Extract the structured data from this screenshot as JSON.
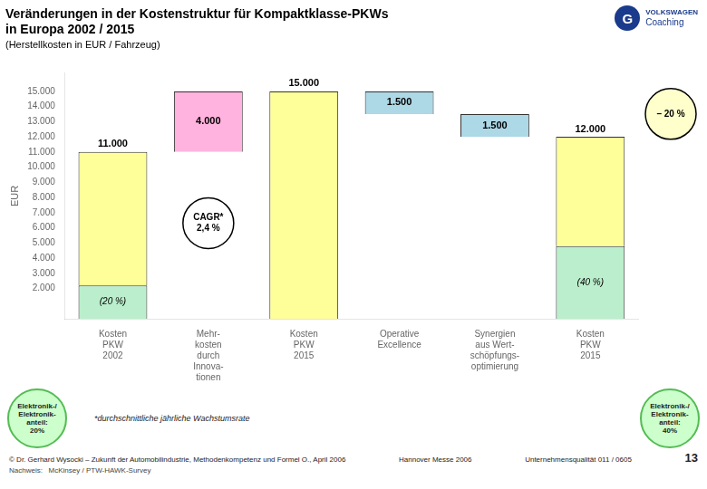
{
  "chart_data": {
    "type": "bar",
    "title": [
      "Veränderungen in der Kostenstruktur für Kompaktklasse-PKWs",
      "in Europa 2002 / 2015"
    ],
    "subtitle": "(Herstellkosten in EUR / Fahrzeug)",
    "ylabel": "EUR",
    "categories": [
      "Kosten\nPKW\n2002",
      "Mehr-\nkosten\ndurch\nInnova-\ntionen",
      "Kosten\nPKW\n2015",
      "Operative\nExcellence",
      "Synergien\naus Wert-\nschöpfungs-\noptimierung",
      "Kosten\nPKW\n2015"
    ],
    "stacked": true,
    "series": [
      {
        "color": "#BBEECC",
        "values": [
          2200,
          null,
          null,
          null,
          null,
          4800
        ],
        "segment_labels": [
          "(20 %)",
          null,
          null,
          null,
          null,
          "(40 %)"
        ]
      },
      {
        "color": "#FFFF99",
        "values": [
          8800,
          null,
          15000,
          null,
          null,
          7200
        ]
      },
      {
        "color": "#FFB3DE",
        "values": [
          null,
          4000,
          null,
          null,
          null,
          null
        ],
        "base": [
          null,
          11000,
          null,
          null,
          null,
          null
        ],
        "data_labels": true,
        "value_labels": [
          null,
          "4.000",
          null,
          null,
          null,
          null
        ]
      },
      {
        "color": "#ADD8E6",
        "values": [
          null,
          null,
          null,
          1500,
          1500,
          null
        ],
        "base": [
          null,
          null,
          null,
          13500,
          12000,
          null
        ],
        "data_labels": true,
        "value_labels": [
          null,
          null,
          null,
          "1.500",
          "1.500",
          null
        ]
      }
    ],
    "totals": [
      11000,
      null,
      15000,
      null,
      null,
      12000
    ],
    "total_labels": [
      "11.000",
      null,
      "15.000",
      null,
      null,
      "12.000"
    ],
    "annotations": [
      {
        "text": [
          "CAGR*",
          "2,4 %"
        ]
      },
      {
        "text": [
          "– 20 %"
        ]
      }
    ],
    "bubbles": [
      [
        "Elektronik-/",
        "Elektronik-",
        "anteil:",
        "20%"
      ],
      [
        "Elektronik-/",
        "Elektronik-",
        "anteil:",
        "40%"
      ]
    ],
    "ylim": [
      0,
      16200
    ],
    "yticks": [
      {
        "value": 2000,
        "label": "2.000"
      },
      {
        "value": 3000,
        "label": "3.000"
      },
      {
        "value": 4000,
        "label": "4.000"
      },
      {
        "value": 5000,
        "label": "5.000"
      },
      {
        "value": 6000,
        "label": "6.000"
      },
      {
        "value": 7000,
        "label": "7.000"
      },
      {
        "value": 8000,
        "label": "8.000"
      },
      {
        "value": 9000,
        "label": "9.000"
      },
      {
        "value": 10000,
        "label": "10.000"
      },
      {
        "value": 11000,
        "label": "11.000"
      },
      {
        "value": 12000,
        "label": "12.000"
      },
      {
        "value": 13000,
        "label": "13.000"
      },
      {
        "value": 14000,
        "label": "14.000"
      },
      {
        "value": 15000,
        "label": "15.000"
      }
    ],
    "grid": false,
    "footnote": "*durchschnittliche jährliche Wachstumsrate",
    "bottom_left_text": "© Dr. Gerhard Wysocki – Zukunft der Automobilindustrie, Methodenkompetenz und Formel O., April 2006",
    "bottom_mid_text": "Hannover Messe 2006",
    "bottom_right_text": "Unternehmensqualität 011 / 0605",
    "page_num": "13",
    "source_text": "Nachweis:   McKinsey / PTW-HAWK-Survey",
    "logo": [
      "G",
      "VOLKSWAGEN",
      "Coaching"
    ]
  }
}
